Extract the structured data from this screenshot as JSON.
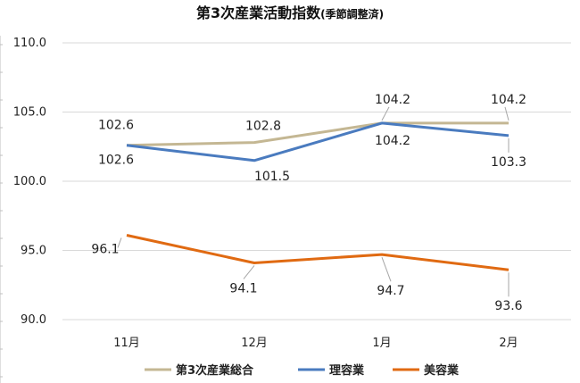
{
  "chart_data": {
    "type": "line",
    "title_main": "第3次産業活動指数",
    "title_note": "(季節調整済)",
    "categories": [
      "11月",
      "12月",
      "1月",
      "2月"
    ],
    "ylim": [
      90.0,
      110.0
    ],
    "yticks": [
      "90.0",
      "95.0",
      "100.0",
      "105.0",
      "110.0"
    ],
    "grid": true,
    "legend_position": "bottom",
    "series": [
      {
        "name": "第3次産業総合",
        "color": "#c4b793",
        "values": [
          102.6,
          102.8,
          104.2,
          104.2
        ]
      },
      {
        "name": "理容業",
        "color": "#4a7bbf",
        "values": [
          102.6,
          101.5,
          104.2,
          103.3
        ]
      },
      {
        "name": "美容業",
        "color": "#e06a12",
        "values": [
          96.1,
          94.1,
          94.7,
          93.6
        ]
      }
    ],
    "data_labels": [
      [
        "102.6",
        "102.8",
        "104.2",
        "104.2"
      ],
      [
        "102.6",
        "101.5",
        "104.2",
        "103.3"
      ],
      [
        "96.1",
        "94.1",
        "94.7",
        "93.6"
      ]
    ]
  }
}
